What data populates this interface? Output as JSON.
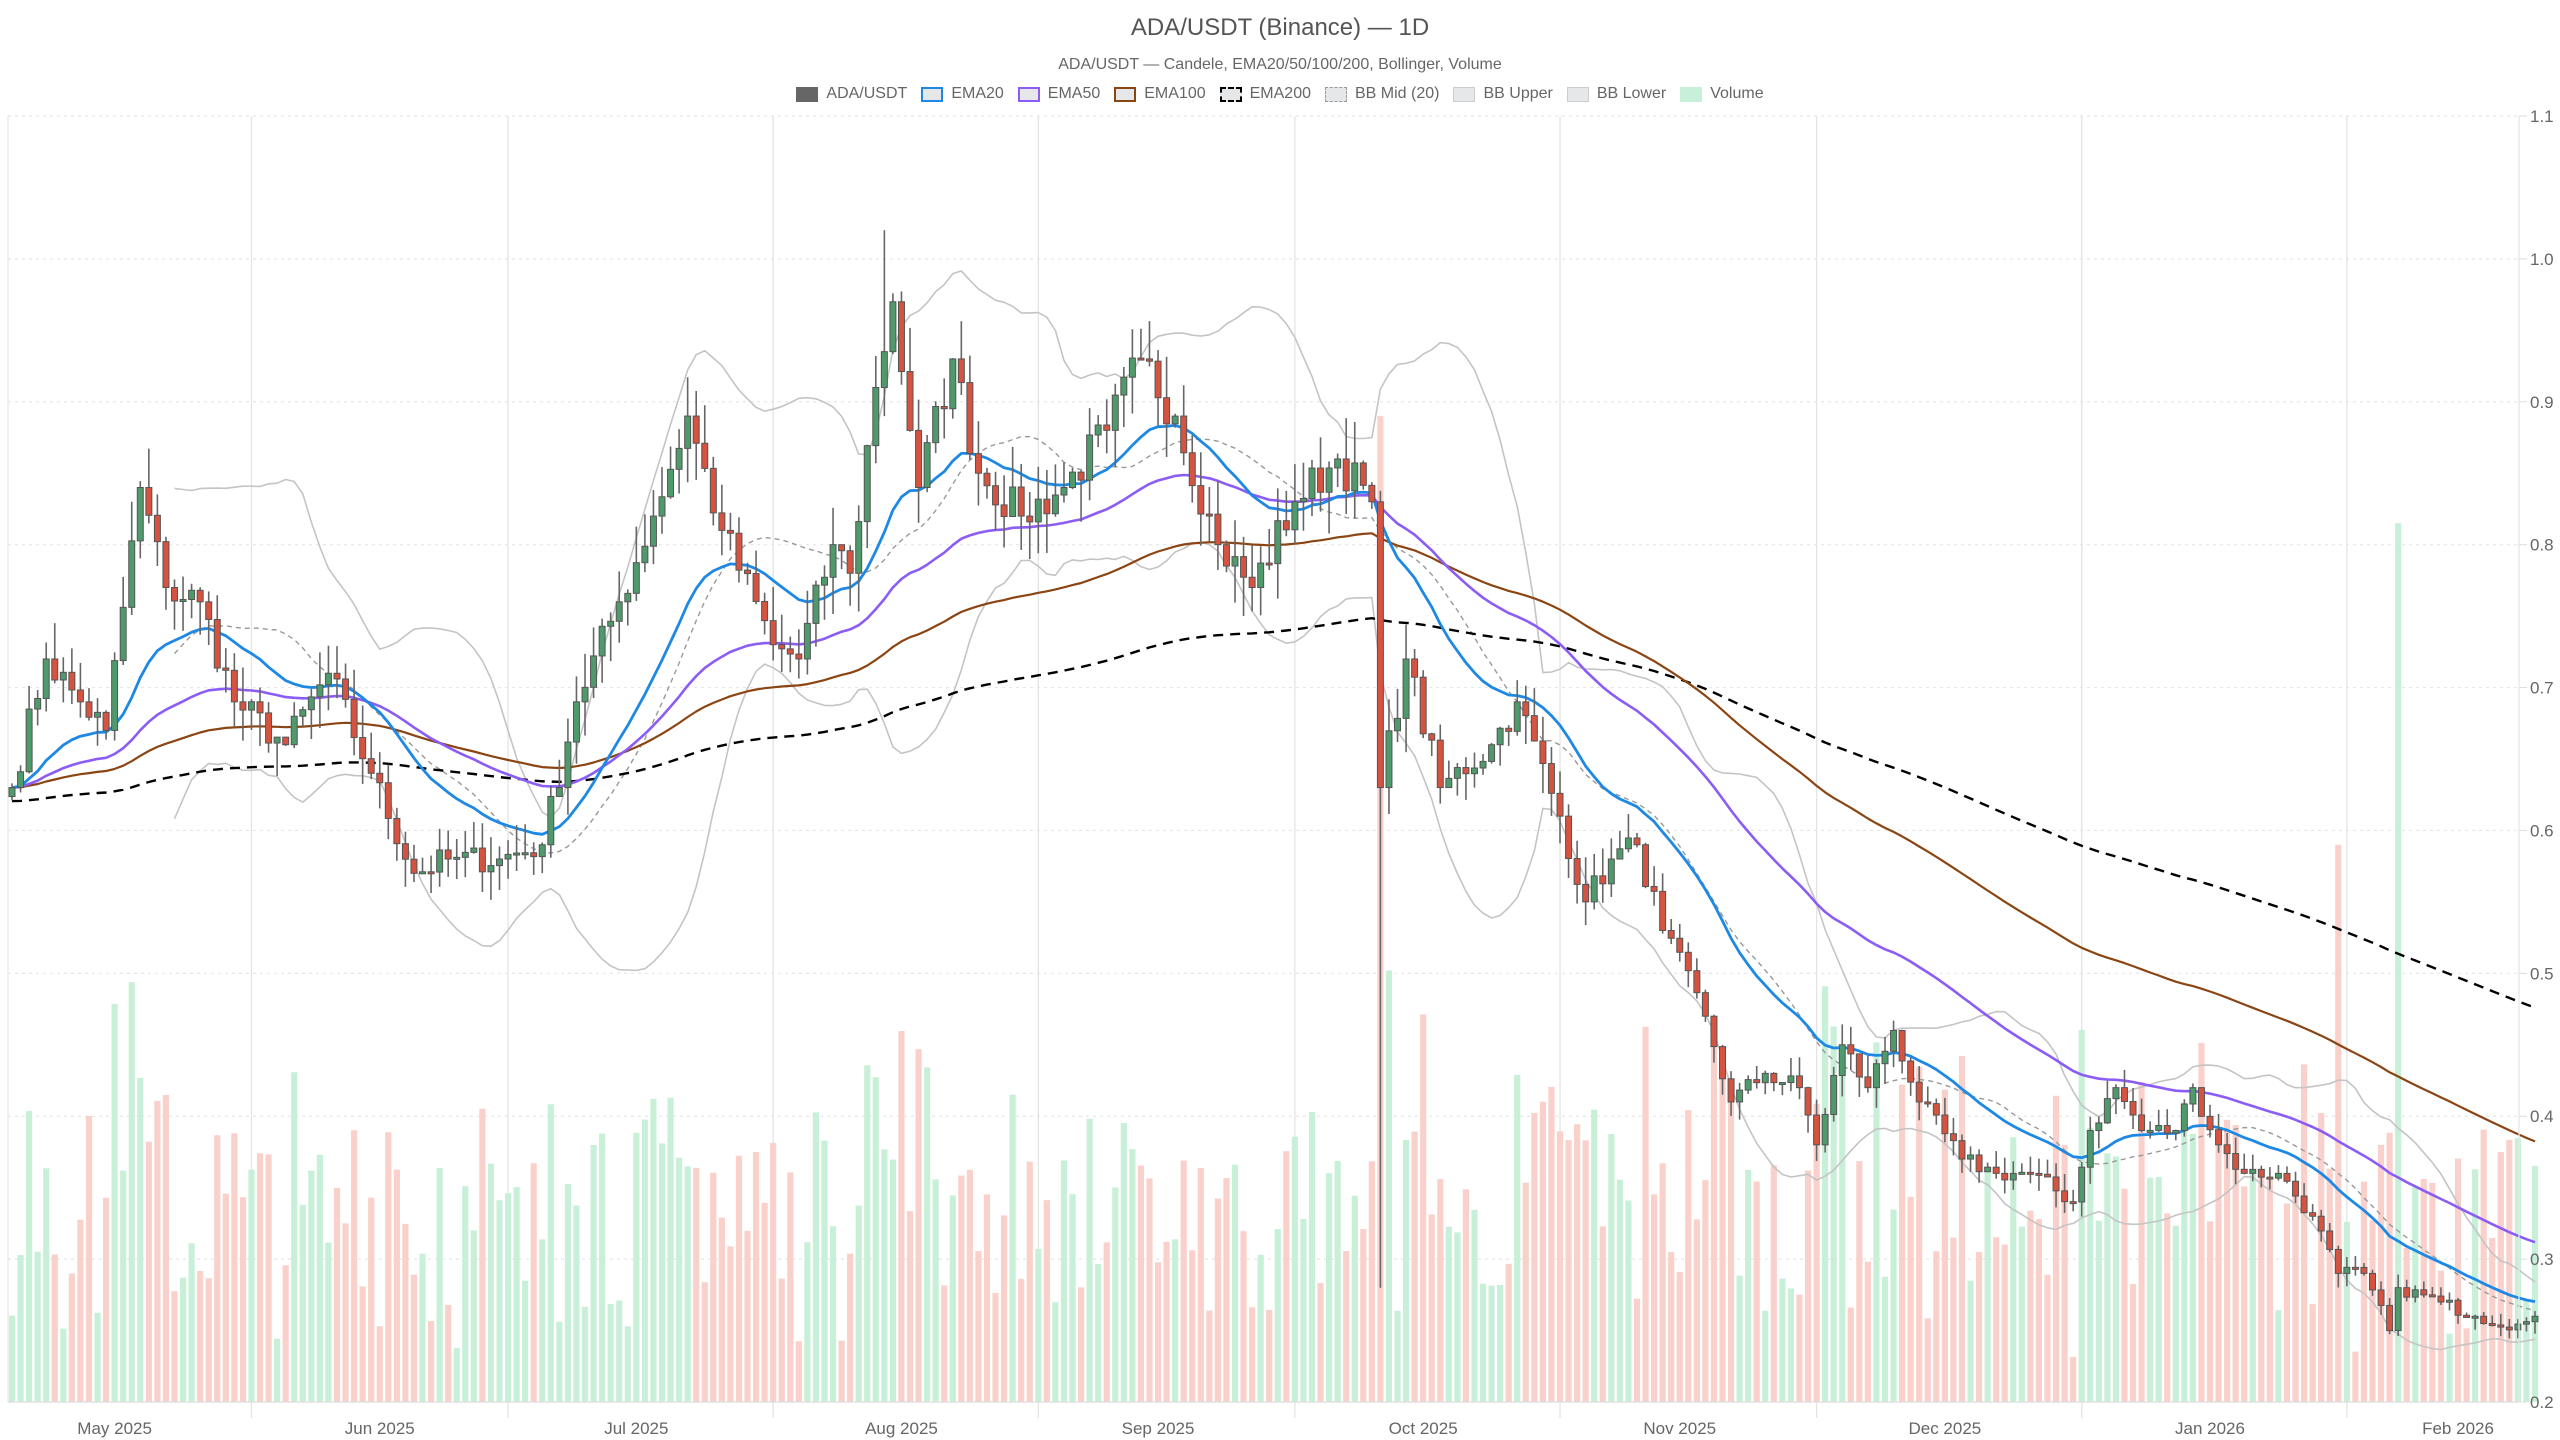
{
  "chart": {
    "title": "ADA/USDT (Binance) — 1D",
    "subtitle": "ADA/USDT — Candele, EMA20/50/100/200, Bollinger, Volume"
  },
  "legend": [
    {
      "label": "ADA/USDT",
      "style": "solid",
      "fill": "#666666",
      "border": "#666666"
    },
    {
      "label": "EMA20",
      "style": "solid",
      "fill": "#e5e7e9",
      "border": "#1e88e5"
    },
    {
      "label": "EMA50",
      "style": "solid",
      "fill": "#e5e7e9",
      "border": "#8b5cf6"
    },
    {
      "label": "EMA100",
      "style": "solid",
      "fill": "#e5e7e9",
      "border": "#8b4513"
    },
    {
      "label": "EMA200",
      "style": "dashed",
      "fill": "#e5e7e9",
      "border": "#000000"
    },
    {
      "label": "BB Mid (20)",
      "style": "dotted",
      "fill": "#e5e7e9",
      "border": "#999999"
    },
    {
      "label": "BB Upper",
      "style": "solid",
      "fill": "#e5e7e9",
      "border": "#cccccc"
    },
    {
      "label": "BB Lower",
      "style": "solid",
      "fill": "#e5e7e9",
      "border": "#cccccc"
    },
    {
      "label": "Volume",
      "style": "solid",
      "fill": "#c8f0d8",
      "border": "#c8f0d8"
    }
  ],
  "colors": {
    "up": "#4e9a6a",
    "down": "#d6533f",
    "wick": "#666666",
    "ema20": "#1e88e5",
    "ema50": "#8b5cf6",
    "ema100": "#8b4513",
    "ema200": "#000000",
    "bb_mid": "#999999",
    "bb_band": "#c4c4c4",
    "vol_up": "#c8f0d8",
    "vol_down": "#fad0ca",
    "grid": "#e6e6e6"
  },
  "chart_data": {
    "type": "candlestick",
    "title": "ADA/USDT (Binance) — 1D",
    "subtitle": "ADA/USDT — Candele, EMA20/50/100/200, Bollinger, Volume",
    "xlabel": "",
    "ylabel": "",
    "ylim": [
      0.2,
      1.1
    ],
    "y_ticks": [
      0.2,
      0.3,
      0.4,
      0.5,
      0.6,
      0.7,
      0.8,
      0.9,
      1.0,
      1.1
    ],
    "x_ticks": [
      "May 2025",
      "Jun 2025",
      "Jul 2025",
      "Aug 2025",
      "Sep 2025",
      "Oct 2025",
      "Nov 2025",
      "Dec 2025",
      "Jan 2026",
      "Feb 2026"
    ],
    "grid": true,
    "legend_position": "top",
    "date_range": [
      "2025-05-04",
      "2026-02-23"
    ],
    "close_anchors": [
      {
        "date": "2025-05-04",
        "close": 0.63
      },
      {
        "date": "2025-05-08",
        "close": 0.72
      },
      {
        "date": "2025-05-12",
        "close": 0.69
      },
      {
        "date": "2025-05-15",
        "close": 0.67
      },
      {
        "date": "2025-05-19",
        "close": 0.84
      },
      {
        "date": "2025-05-22",
        "close": 0.77
      },
      {
        "date": "2025-05-26",
        "close": 0.76
      },
      {
        "date": "2025-05-30",
        "close": 0.69
      },
      {
        "date": "2025-06-05",
        "close": 0.66
      },
      {
        "date": "2025-06-10",
        "close": 0.71
      },
      {
        "date": "2025-06-15",
        "close": 0.64
      },
      {
        "date": "2025-06-20",
        "close": 0.57
      },
      {
        "date": "2025-06-24",
        "close": 0.58
      },
      {
        "date": "2025-06-30",
        "close": 0.58
      },
      {
        "date": "2025-07-05",
        "close": 0.59
      },
      {
        "date": "2025-07-09",
        "close": 0.69
      },
      {
        "date": "2025-07-14",
        "close": 0.76
      },
      {
        "date": "2025-07-18",
        "close": 0.82
      },
      {
        "date": "2025-07-22",
        "close": 0.89
      },
      {
        "date": "2025-07-26",
        "close": 0.81
      },
      {
        "date": "2025-08-01",
        "close": 0.73
      },
      {
        "date": "2025-08-04",
        "close": 0.72
      },
      {
        "date": "2025-08-08",
        "close": 0.8
      },
      {
        "date": "2025-08-10",
        "close": 0.78
      },
      {
        "date": "2025-08-13",
        "close": 0.91
      },
      {
        "date": "2025-08-15",
        "close": 0.97
      },
      {
        "date": "2025-08-18",
        "close": 0.84
      },
      {
        "date": "2025-08-22",
        "close": 0.93
      },
      {
        "date": "2025-08-25",
        "close": 0.85
      },
      {
        "date": "2025-08-30",
        "close": 0.82
      },
      {
        "date": "2025-09-04",
        "close": 0.84
      },
      {
        "date": "2025-09-09",
        "close": 0.88
      },
      {
        "date": "2025-09-13",
        "close": 0.93
      },
      {
        "date": "2025-09-17",
        "close": 0.89
      },
      {
        "date": "2025-09-22",
        "close": 0.8
      },
      {
        "date": "2025-09-26",
        "close": 0.77
      },
      {
        "date": "2025-10-01",
        "close": 0.83
      },
      {
        "date": "2025-10-06",
        "close": 0.86
      },
      {
        "date": "2025-10-10",
        "close": 0.83
      },
      {
        "date": "2025-10-11",
        "close": 0.63
      },
      {
        "date": "2025-10-14",
        "close": 0.72
      },
      {
        "date": "2025-10-18",
        "close": 0.63
      },
      {
        "date": "2025-10-24",
        "close": 0.66
      },
      {
        "date": "2025-10-27",
        "close": 0.69
      },
      {
        "date": "2025-11-01",
        "close": 0.61
      },
      {
        "date": "2025-11-04",
        "close": 0.55
      },
      {
        "date": "2025-11-07",
        "close": 0.58
      },
      {
        "date": "2025-11-10",
        "close": 0.59
      },
      {
        "date": "2025-11-13",
        "close": 0.53
      },
      {
        "date": "2025-11-18",
        "close": 0.47
      },
      {
        "date": "2025-11-21",
        "close": 0.41
      },
      {
        "date": "2025-11-25",
        "close": 0.43
      },
      {
        "date": "2025-11-29",
        "close": 0.42
      },
      {
        "date": "2025-12-01",
        "close": 0.38
      },
      {
        "date": "2025-12-04",
        "close": 0.45
      },
      {
        "date": "2025-12-07",
        "close": 0.42
      },
      {
        "date": "2025-12-10",
        "close": 0.46
      },
      {
        "date": "2025-12-13",
        "close": 0.41
      },
      {
        "date": "2025-12-18",
        "close": 0.37
      },
      {
        "date": "2025-12-22",
        "close": 0.36
      },
      {
        "date": "2025-12-26",
        "close": 0.36
      },
      {
        "date": "2025-12-31",
        "close": 0.34
      },
      {
        "date": "2026-01-02",
        "close": 0.39
      },
      {
        "date": "2026-01-05",
        "close": 0.42
      },
      {
        "date": "2026-01-08",
        "close": 0.39
      },
      {
        "date": "2026-01-12",
        "close": 0.39
      },
      {
        "date": "2026-01-14",
        "close": 0.42
      },
      {
        "date": "2026-01-17",
        "close": 0.38
      },
      {
        "date": "2026-01-20",
        "close": 0.36
      },
      {
        "date": "2026-01-24",
        "close": 0.36
      },
      {
        "date": "2026-01-28",
        "close": 0.33
      },
      {
        "date": "2026-01-31",
        "close": 0.29
      },
      {
        "date": "2026-02-03",
        "close": 0.29
      },
      {
        "date": "2026-02-06",
        "close": 0.25
      },
      {
        "date": "2026-02-07",
        "close": 0.28
      },
      {
        "date": "2026-02-12",
        "close": 0.27
      },
      {
        "date": "2026-02-16",
        "close": 0.26
      }
    ],
    "series_endpoints": {
      "EMA20": {
        "start": 0.63,
        "end": 0.3
      },
      "EMA50": {
        "start": 0.63,
        "end": 0.345
      },
      "EMA100": {
        "start": 0.63,
        "end": 0.415
      },
      "EMA200": {
        "start": 0.62,
        "end": 0.51,
        "peak": {
          "date": "2025-10-10",
          "value": 0.76
        }
      },
      "BB Upper": {
        "end": 0.38
      },
      "BB Lower": {
        "end": 0.225
      }
    },
    "notable": {
      "high": {
        "date": "2025-08-14",
        "value": 1.02
      },
      "flash_crash_wick_low": {
        "date": "2025-10-10",
        "value": 0.28
      },
      "last_close": 0.26,
      "max_volume_bar": {
        "date": "2026-02-07",
        "relative_height_price_units": 0.815
      }
    }
  }
}
